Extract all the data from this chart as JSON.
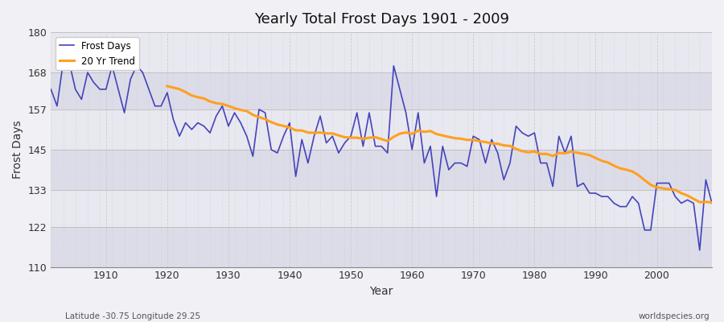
{
  "title": "Yearly Total Frost Days 1901 - 2009",
  "xlabel": "Year",
  "ylabel": "Frost Days",
  "footnote_left": "Latitude -30.75 Longitude 29.25",
  "footnote_right": "worldspecies.org",
  "line_color": "#4444bb",
  "trend_color": "#ffa020",
  "bg_color": "#f0f0f5",
  "band_color_light": "#e8e8f0",
  "band_color_dark": "#dcdce8",
  "ylim": [
    110,
    180
  ],
  "yticks": [
    110,
    122,
    133,
    145,
    157,
    168,
    180
  ],
  "xlim": [
    1901,
    2009
  ],
  "xticks": [
    1910,
    1920,
    1930,
    1940,
    1950,
    1960,
    1970,
    1980,
    1990,
    2000
  ],
  "trend_window": 20,
  "years": [
    1901,
    1902,
    1903,
    1904,
    1905,
    1906,
    1907,
    1908,
    1909,
    1910,
    1911,
    1912,
    1913,
    1914,
    1915,
    1916,
    1917,
    1918,
    1919,
    1920,
    1921,
    1922,
    1923,
    1924,
    1925,
    1926,
    1927,
    1928,
    1929,
    1930,
    1931,
    1932,
    1933,
    1934,
    1935,
    1936,
    1937,
    1938,
    1939,
    1940,
    1941,
    1942,
    1943,
    1944,
    1945,
    1946,
    1947,
    1948,
    1949,
    1950,
    1951,
    1952,
    1953,
    1954,
    1955,
    1956,
    1957,
    1958,
    1959,
    1960,
    1961,
    1962,
    1963,
    1964,
    1965,
    1966,
    1967,
    1968,
    1969,
    1970,
    1971,
    1972,
    1973,
    1974,
    1975,
    1976,
    1977,
    1978,
    1979,
    1980,
    1981,
    1982,
    1983,
    1984,
    1985,
    1986,
    1987,
    1988,
    1989,
    1990,
    1991,
    1992,
    1993,
    1994,
    1995,
    1996,
    1997,
    1998,
    1999,
    2000,
    2001,
    2002,
    2003,
    2004,
    2005,
    2006,
    2007,
    2008,
    2009
  ],
  "frost_days": [
    163,
    158,
    171,
    171,
    163,
    160,
    168,
    165,
    163,
    163,
    170,
    163,
    156,
    166,
    170,
    168,
    163,
    158,
    158,
    162,
    154,
    149,
    153,
    151,
    153,
    152,
    150,
    155,
    158,
    152,
    156,
    153,
    149,
    143,
    157,
    156,
    145,
    144,
    149,
    153,
    137,
    148,
    141,
    149,
    155,
    147,
    149,
    144,
    147,
    149,
    156,
    146,
    156,
    146,
    146,
    144,
    170,
    163,
    156,
    145,
    156,
    141,
    146,
    131,
    146,
    139,
    141,
    141,
    140,
    149,
    148,
    141,
    148,
    144,
    136,
    141,
    152,
    150,
    149,
    150,
    141,
    141,
    134,
    149,
    144,
    149,
    134,
    135,
    132,
    132,
    131,
    131,
    129,
    128,
    128,
    131,
    129,
    121,
    121,
    135,
    135,
    135,
    131,
    129,
    130,
    129,
    115,
    136,
    129
  ]
}
